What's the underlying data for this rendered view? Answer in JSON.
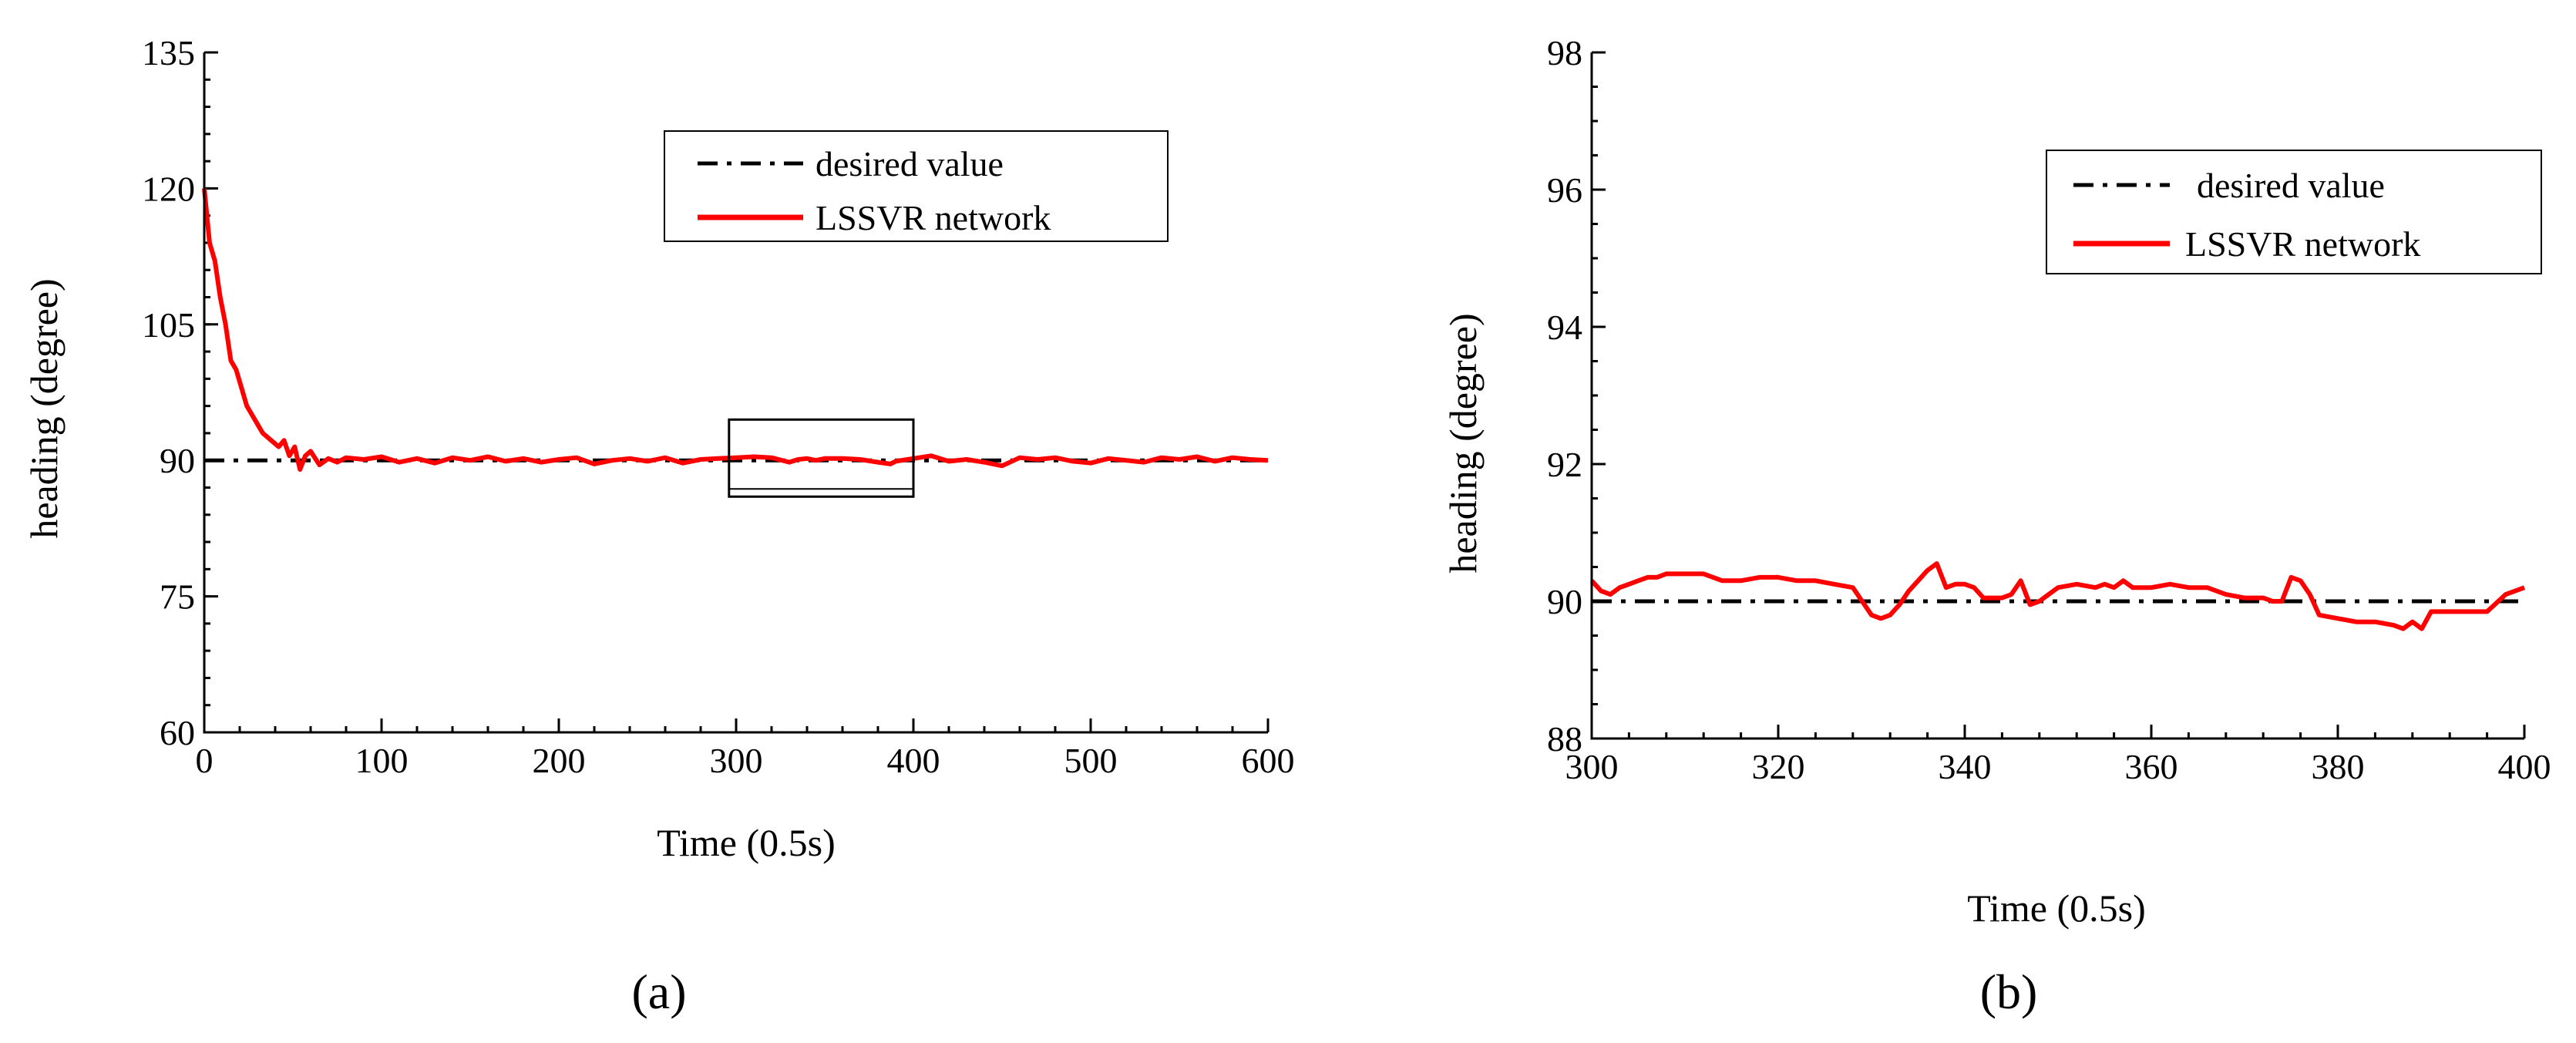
{
  "chart_data": [
    {
      "type": "line",
      "panel_label": "(a)",
      "title": "",
      "xlabel": "Time (0.5s)",
      "ylabel": "heading (degree)",
      "xlim": [
        0,
        600
      ],
      "ylim": [
        60,
        135
      ],
      "xticks": [
        0,
        100,
        200,
        300,
        400,
        500,
        600
      ],
      "yticks": [
        60,
        75,
        90,
        105,
        120,
        135
      ],
      "legend": [
        "desired value",
        "LSSVR network"
      ],
      "legend_position": "top-right",
      "annotation": "zoom box spanning x 296 to 400",
      "zoom_box": {
        "x": [
          296,
          400
        ],
        "y": [
          86,
          94.5
        ]
      },
      "series": [
        {
          "name": "desired value",
          "style": "dash-dot",
          "color": "#000000",
          "x": [
            0,
            600
          ],
          "y": [
            90,
            90
          ]
        },
        {
          "name": "LSSVR network",
          "style": "solid",
          "color": "#ff0000",
          "x": [
            0,
            3,
            6,
            9,
            12,
            15,
            18,
            21,
            24,
            27,
            30,
            33,
            36,
            39,
            42,
            45,
            48,
            51,
            54,
            57,
            60,
            65,
            70,
            75,
            80,
            90,
            100,
            110,
            120,
            130,
            140,
            150,
            160,
            170,
            180,
            190,
            200,
            210,
            220,
            230,
            240,
            250,
            260,
            270,
            280,
            290,
            300,
            310,
            320,
            330,
            335,
            340,
            345,
            350,
            360,
            370,
            380,
            387,
            390,
            400,
            410,
            420,
            430,
            440,
            450,
            460,
            470,
            480,
            490,
            500,
            510,
            520,
            530,
            540,
            550,
            560,
            570,
            580,
            590,
            600
          ],
          "y": [
            120,
            114,
            112,
            108,
            105,
            101,
            100,
            98,
            96,
            95,
            94,
            93,
            92.5,
            92,
            91.5,
            92.2,
            90.5,
            91.5,
            89,
            90.5,
            91,
            89.5,
            90.2,
            89.8,
            90.3,
            90.1,
            90.4,
            89.8,
            90.2,
            89.7,
            90.3,
            90,
            90.4,
            89.9,
            90.2,
            89.8,
            90.1,
            90.3,
            89.6,
            90,
            90.2,
            89.9,
            90.3,
            89.7,
            90.1,
            90.2,
            90.3,
            90.4,
            90.3,
            89.8,
            90.1,
            90.2,
            90.0,
            90.2,
            90.2,
            90.1,
            89.8,
            89.6,
            89.9,
            90.2,
            90.5,
            89.9,
            90.1,
            89.8,
            89.4,
            90.3,
            90.1,
            90.3,
            89.9,
            89.7,
            90.2,
            90,
            89.8,
            90.3,
            90.1,
            90.4,
            89.9,
            90.3,
            90.1,
            90
          ]
        }
      ]
    },
    {
      "type": "line",
      "panel_label": "(b)",
      "title": "",
      "xlabel": "Time (0.5s)",
      "ylabel": "heading (degree)",
      "xlim": [
        300,
        400
      ],
      "ylim": [
        88,
        98
      ],
      "xticks": [
        300,
        320,
        340,
        360,
        380,
        400
      ],
      "yticks": [
        88,
        90,
        92,
        94,
        96,
        98
      ],
      "legend": [
        "desired value",
        "LSSVR network"
      ],
      "legend_position": "top-right",
      "series": [
        {
          "name": "desired value",
          "style": "dash-dot",
          "color": "#000000",
          "x": [
            300,
            400
          ],
          "y": [
            90,
            90
          ]
        },
        {
          "name": "LSSVR network",
          "style": "solid",
          "color": "#ff0000",
          "x": [
            300,
            301,
            302,
            303,
            304,
            305,
            306,
            307,
            308,
            310,
            312,
            314,
            316,
            318,
            320,
            322,
            324,
            326,
            328,
            329,
            330,
            331,
            332,
            333,
            334,
            335,
            336,
            337,
            338,
            339,
            340,
            341,
            342,
            343,
            344,
            345,
            346,
            347,
            348,
            349,
            350,
            352,
            354,
            355,
            356,
            357,
            358,
            360,
            362,
            364,
            366,
            368,
            370,
            372,
            373,
            374,
            375,
            376,
            377,
            378,
            380,
            382,
            384,
            386,
            387,
            388,
            389,
            390,
            392,
            394,
            396,
            398,
            400
          ],
          "y": [
            90.3,
            90.15,
            90.1,
            90.2,
            90.25,
            90.3,
            90.35,
            90.35,
            90.4,
            90.4,
            90.4,
            90.3,
            90.3,
            90.35,
            90.35,
            90.3,
            90.3,
            90.25,
            90.2,
            90.0,
            89.8,
            89.75,
            89.8,
            89.95,
            90.15,
            90.3,
            90.45,
            90.55,
            90.2,
            90.25,
            90.25,
            90.2,
            90.05,
            90.05,
            90.05,
            90.1,
            90.3,
            89.95,
            90.0,
            90.1,
            90.2,
            90.25,
            90.2,
            90.25,
            90.2,
            90.3,
            90.2,
            90.2,
            90.25,
            90.2,
            90.2,
            90.1,
            90.05,
            90.05,
            90.0,
            90.0,
            90.35,
            90.3,
            90.1,
            89.8,
            89.75,
            89.7,
            89.7,
            89.65,
            89.6,
            89.7,
            89.6,
            89.85,
            89.85,
            89.85,
            89.85,
            90.1,
            90.2
          ]
        }
      ]
    }
  ]
}
